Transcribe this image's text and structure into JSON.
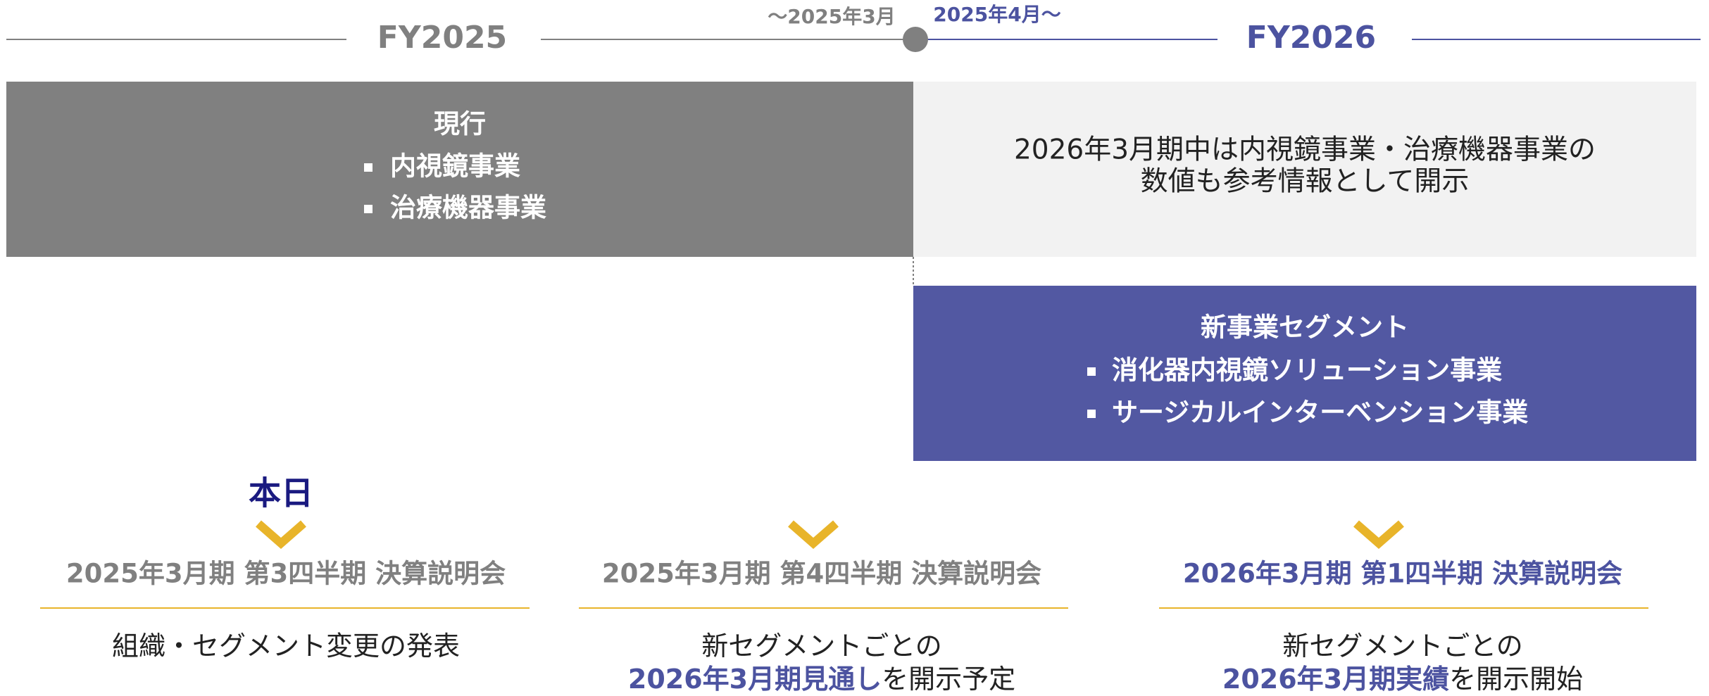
{
  "timeline": {
    "left_label": "FY2025",
    "until": "〜2025年3月",
    "from": "2025年4月〜",
    "right_label": "FY2026"
  },
  "current_box": {
    "title": "現行",
    "items": [
      "内視鏡事業",
      "治療機器事業"
    ]
  },
  "note_box": {
    "lines": [
      "2026年3月期中は内視鏡事業・治療機器事業の",
      "数値も参考情報として開示"
    ]
  },
  "new_box": {
    "title": "新事業セグメント",
    "items": [
      "消化器内視鏡ソリューション事業",
      "サージカルインターベンション事業"
    ]
  },
  "today": "本日",
  "events": [
    {
      "title": "2025年3月期 第3四半期 決算説明会",
      "color": "#808080",
      "lines": [
        [
          {
            "text": "組織・セグメント変更の発表",
            "emphasis": false
          }
        ]
      ]
    },
    {
      "title": "2025年3月期 第4四半期 決算説明会",
      "color": "#808080",
      "lines": [
        [
          {
            "text": "新セグメントごとの",
            "emphasis": false
          }
        ],
        [
          {
            "text": "2026年3月期見通し",
            "emphasis": true
          },
          {
            "text": "を開示予定",
            "emphasis": false
          }
        ]
      ]
    },
    {
      "title": "2026年3月期 第1四半期 決算説明会",
      "color": "#4c53a0",
      "lines": [
        [
          {
            "text": "新セグメントごとの",
            "emphasis": false
          }
        ],
        [
          {
            "text": "2026年3月期実績",
            "emphasis": true
          },
          {
            "text": "を開示開始",
            "emphasis": false
          }
        ]
      ]
    }
  ]
}
